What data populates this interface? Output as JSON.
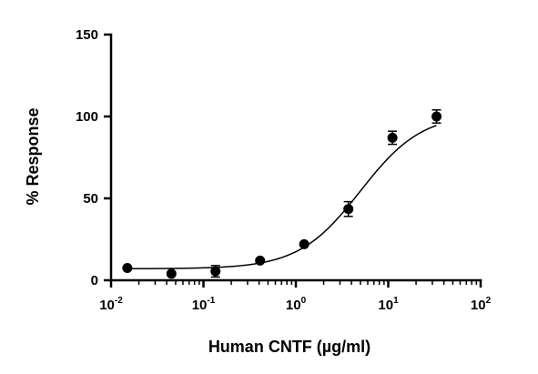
{
  "chart_data": {
    "type": "scatter",
    "title": "",
    "xlabel": "Human CNTF (µg/ml)",
    "ylabel": "% Response",
    "x_scale": "log",
    "xlim": [
      0.01,
      100
    ],
    "ylim": [
      0,
      150
    ],
    "x_ticks": [
      {
        "value": 0.01,
        "base": "10",
        "exponent": "-2"
      },
      {
        "value": 0.1,
        "base": "10",
        "exponent": "-1"
      },
      {
        "value": 1,
        "base": "10",
        "exponent": "0"
      },
      {
        "value": 10,
        "base": "10",
        "exponent": "1"
      },
      {
        "value": 100,
        "base": "10",
        "exponent": "2"
      }
    ],
    "y_ticks": [
      {
        "value": 0,
        "label": "0"
      },
      {
        "value": 50,
        "label": "50"
      },
      {
        "value": 100,
        "label": "100"
      },
      {
        "value": 150,
        "label": "150"
      }
    ],
    "grid": false,
    "legend": "none",
    "marker_color": "#000000",
    "series": [
      {
        "points": [
          {
            "x": 0.015,
            "y": 7.5,
            "err": 1.0
          },
          {
            "x": 0.045,
            "y": 4.0,
            "err": 1.0
          },
          {
            "x": 0.135,
            "y": 5.5,
            "err": 3.5
          },
          {
            "x": 0.41,
            "y": 12.0,
            "err": 1.0
          },
          {
            "x": 1.23,
            "y": 22.0,
            "err": 1.0
          },
          {
            "x": 3.7,
            "y": 43.5,
            "err": 4.5
          },
          {
            "x": 11.1,
            "y": 87.0,
            "err": 4.0
          },
          {
            "x": 33.3,
            "y": 100.0,
            "err": 4.0
          }
        ]
      }
    ],
    "fit": {
      "model": "4PL",
      "bottom": 7,
      "top": 102,
      "ec50": 5,
      "hill": 1.3
    }
  }
}
